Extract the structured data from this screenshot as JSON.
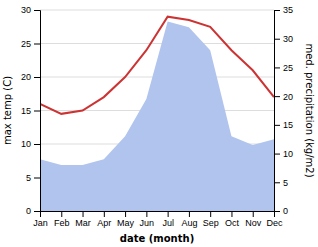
{
  "chart_data": {
    "type": "line",
    "categories": [
      "Jan",
      "Feb",
      "Mar",
      "Apr",
      "May",
      "Jun",
      "Jul",
      "Aug",
      "Sep",
      "Oct",
      "Nov",
      "Dec"
    ],
    "series": [
      {
        "type": "area",
        "axis": "y2",
        "color": "#b0c4ee",
        "values": [
          9.0,
          8.0,
          8.0,
          9.0,
          13.0,
          19.5,
          33.0,
          32.0,
          28.0,
          13.0,
          11.5,
          12.5
        ]
      },
      {
        "type": "line",
        "color": "#cc3333",
        "values": [
          16.0,
          14.5,
          15.0,
          17.0,
          20.0,
          24.0,
          29.0,
          28.5,
          27.5,
          24.0,
          21.0,
          17.0
        ]
      }
    ],
    "xlabel": "date (month)",
    "ylabel": "max temp (C)",
    "y2label": "med. precipitation (kg/m2)",
    "ylim": [
      0,
      30
    ],
    "yticks": [
      0,
      5,
      10,
      15,
      20,
      25,
      30
    ],
    "y2lim": [
      0,
      35
    ],
    "y2ticks": [
      0,
      5,
      10,
      15,
      20,
      25,
      30,
      35
    ],
    "grid": true
  }
}
